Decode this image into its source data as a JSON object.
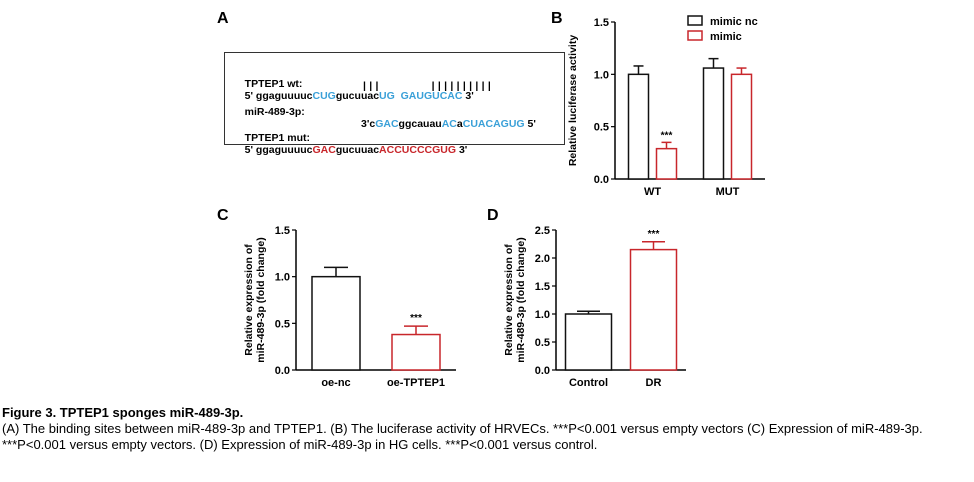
{
  "panels": {
    "a": "A",
    "b": "B",
    "c": "C",
    "d": "D"
  },
  "sequence_panel": {
    "wt": {
      "label": "TPTEP1 wt:",
      "seq_parts": [
        {
          "t": "5' ggaguuuuc",
          "c": "black"
        },
        {
          "t": "CUG",
          "c": "blue"
        },
        {
          "t": "gucuuac",
          "c": "black"
        },
        {
          "t": "UG",
          "c": "blue"
        },
        {
          "t": "  ",
          "c": "black"
        },
        {
          "t": "GAUGUCAC",
          "c": "blue"
        },
        {
          "t": " 3'",
          "c": "black"
        }
      ]
    },
    "pairs": "| | |                 | | | | | | | | | |",
    "mir": {
      "label": "miR-489-3p:",
      "seq_parts": [
        {
          "t": "3'c",
          "c": "black"
        },
        {
          "t": "GAC",
          "c": "blue"
        },
        {
          "t": "ggcauau",
          "c": "black"
        },
        {
          "t": "AC",
          "c": "blue"
        },
        {
          "t": "a",
          "c": "black"
        },
        {
          "t": "CUACAGUG",
          "c": "blue"
        },
        {
          "t": " 5'",
          "c": "black"
        }
      ]
    },
    "mut": {
      "label": "TPTEP1 mut:",
      "seq_parts": [
        {
          "t": "5' ggaguuuuc",
          "c": "black"
        },
        {
          "t": "GAC",
          "c": "red"
        },
        {
          "t": "gucuuac",
          "c": "black"
        },
        {
          "t": "ACCUCCCGUG",
          "c": "red"
        },
        {
          "t": " 3'",
          "c": "black"
        }
      ]
    }
  },
  "colors": {
    "black_series": "#111111",
    "red_series": "#c8262b",
    "blue_seq": "#3aa0d8"
  },
  "chart_data": [
    {
      "id": "B",
      "type": "bar",
      "ylabel": "Relative luciferase activity",
      "ylim": [
        0,
        1.5
      ],
      "yticks": [
        "0.0",
        "0.5",
        "1.0",
        "1.5"
      ],
      "categories": [
        "WT",
        "MUT"
      ],
      "legend": {
        "placement": "top-right",
        "entries": [
          "mimic nc",
          "mimic"
        ]
      },
      "series": [
        {
          "name": "mimic nc",
          "color": "black",
          "values": [
            1.0,
            1.06
          ],
          "errors": [
            0.08,
            0.09
          ]
        },
        {
          "name": "mimic",
          "color": "red",
          "values": [
            0.29,
            1.0
          ],
          "errors": [
            0.06,
            0.06
          ]
        }
      ],
      "annotations": [
        {
          "category": 0,
          "series": 1,
          "text": "***"
        }
      ]
    },
    {
      "id": "C",
      "type": "bar",
      "ylabel": "Relative expression of miR-489-3p (fold change)",
      "ylabel_lines": [
        "Relative expression of",
        "miR-489-3p (fold change)"
      ],
      "ylim": [
        0,
        1.5
      ],
      "yticks": [
        "0.0",
        "0.5",
        "1.0",
        "1.5"
      ],
      "categories": [
        "oe-nc",
        "oe-TPTEP1"
      ],
      "values": [
        1.0,
        0.38
      ],
      "errors": [
        0.1,
        0.09
      ],
      "bar_colors": [
        "black",
        "red"
      ],
      "annotations": [
        {
          "index": 1,
          "text": "***"
        }
      ]
    },
    {
      "id": "D",
      "type": "bar",
      "ylabel": "Relative expression of miR-489-3p (fold change)",
      "ylabel_lines": [
        "Relative expression of",
        "miR-489-3p (fold change)"
      ],
      "ylim": [
        0,
        2.5
      ],
      "yticks": [
        "0.0",
        "0.5",
        "1.0",
        "1.5",
        "2.0",
        "2.5"
      ],
      "categories": [
        "Control",
        "DR"
      ],
      "values": [
        1.0,
        2.15
      ],
      "errors": [
        0.05,
        0.14
      ],
      "bar_colors": [
        "black",
        "red"
      ],
      "annotations": [
        {
          "index": 1,
          "text": "***"
        }
      ]
    }
  ],
  "caption": {
    "title": "Figure 3. TPTEP1 sponges miR-489-3p.",
    "body": "(A) The binding sites between miR-489-3p and TPTEP1. (B) The luciferase activity of HRVECs. ***P<0.001 versus empty vectors (C) Expression of miR-489-3p. ***P<0.001 versus empty vectors. (D) Expression of miR-489-3p in HG cells. ***P<0.001 versus control."
  }
}
